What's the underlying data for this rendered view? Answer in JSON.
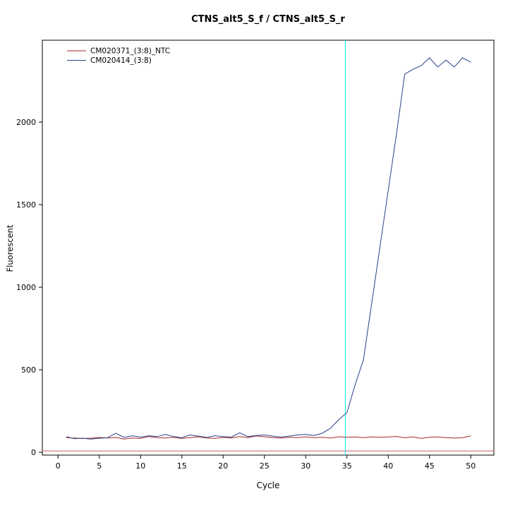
{
  "title": "CTNS_alt5_S_f / CTNS_alt5_S_r",
  "chart_data": {
    "type": "line",
    "title": "CTNS_alt5_S_f / CTNS_alt5_S_r",
    "xlabel": "Cycle",
    "ylabel": "Fluorescent",
    "grid": false,
    "legend_position": "top-left",
    "x_ticks": [
      0,
      5,
      10,
      15,
      20,
      25,
      30,
      35,
      40,
      45,
      50
    ],
    "y_ticks": [
      0,
      500,
      1000,
      1500,
      2000
    ],
    "xlim": [
      -1.9,
      52.8
    ],
    "ylim": [
      -17,
      2496
    ],
    "threshold_line": {
      "x": 34.8,
      "color": "#00eeee"
    },
    "baseline_line": {
      "y": 8,
      "color": "#cd5c5c"
    },
    "x": [
      1,
      2,
      3,
      4,
      5,
      6,
      7,
      8,
      9,
      10,
      11,
      12,
      13,
      14,
      15,
      16,
      17,
      18,
      19,
      20,
      21,
      22,
      23,
      24,
      25,
      26,
      27,
      28,
      29,
      30,
      31,
      32,
      33,
      34,
      35,
      36,
      37,
      38,
      39,
      40,
      41,
      42,
      43,
      44,
      45,
      46,
      47,
      48,
      49,
      50
    ],
    "series": [
      {
        "name": "CM020371_(3:8)_NTC",
        "color": "#a52a2a",
        "values": [
          88,
          86,
          84,
          85,
          90,
          87,
          90,
          80,
          87,
          84,
          95,
          89,
          87,
          91,
          84,
          89,
          94,
          87,
          84,
          90,
          87,
          95,
          89,
          99,
          94,
          89,
          86,
          91,
          89,
          93,
          89,
          91,
          86,
          94,
          91,
          93,
          88,
          93,
          91,
          93,
          96,
          88,
          93,
          84,
          91,
          93,
          89,
          86,
          88,
          99
        ]
      },
      {
        "name": "CM020414_(3:8)",
        "color": "#27408b",
        "values": [
          95,
          82,
          85,
          80,
          85,
          88,
          115,
          90,
          100,
          92,
          100,
          95,
          108,
          95,
          88,
          105,
          98,
          90,
          100,
          95,
          92,
          118,
          95,
          102,
          105,
          98,
          92,
          98,
          105,
          108,
          102,
          115,
          145,
          197,
          240,
          410,
          560,
          902,
          1244,
          1585,
          1927,
          2290,
          2320,
          2342,
          2389,
          2333,
          2376,
          2333,
          2389,
          2363
        ]
      }
    ]
  }
}
